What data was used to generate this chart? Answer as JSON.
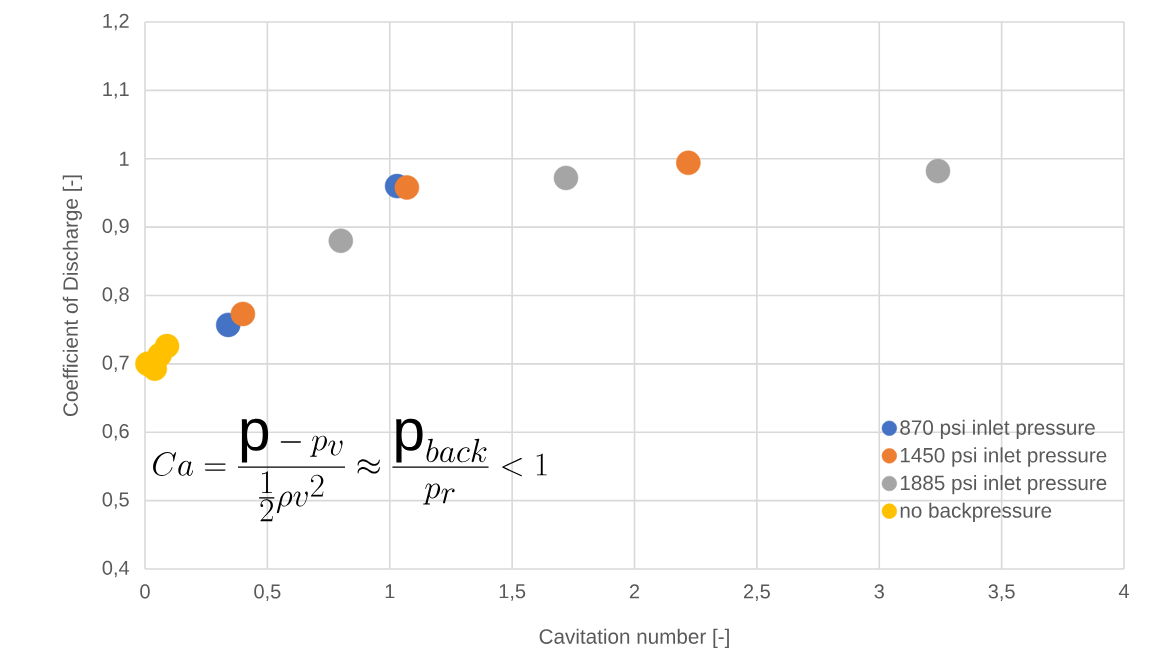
{
  "chart_data": {
    "type": "scatter",
    "xlabel": "Cavitation number [-]",
    "ylabel": "Coefficient of Discharge [-]",
    "xlim": [
      0,
      4
    ],
    "ylim": [
      0.4,
      1.2
    ],
    "xticks": [
      0,
      {
        "value": 0.5,
        "label": "0,5"
      },
      1,
      {
        "value": 1.5,
        "label": "1,5"
      },
      2,
      {
        "value": 2.5,
        "label": "2,5"
      },
      3,
      {
        "value": 3.5,
        "label": "3,5"
      },
      4
    ],
    "yticks": [
      {
        "value": 0.4,
        "label": "0,4"
      },
      {
        "value": 0.5,
        "label": "0,5"
      },
      {
        "value": 0.6,
        "label": "0,6"
      },
      {
        "value": 0.7,
        "label": "0,7"
      },
      {
        "value": 0.8,
        "label": "0,8"
      },
      {
        "value": 0.9,
        "label": "0,9"
      },
      1,
      {
        "value": 1.1,
        "label": "1,1"
      },
      {
        "value": 1.2,
        "label": "1,2"
      }
    ],
    "grid": true,
    "legend": "bottom right",
    "series": [
      {
        "name": "870 psi inlet pressure",
        "color": "#4472c4",
        "x": [
          0.34,
          1.03
        ],
        "values": [
          0.757,
          0.96
        ]
      },
      {
        "name": "1450 psi inlet pressure",
        "color": "#ed7d31",
        "x": [
          0.4,
          1.07,
          2.22
        ],
        "values": [
          0.773,
          0.958,
          0.994
        ]
      },
      {
        "name": "1885 psi inlet pressure",
        "color": "#a5a5a5",
        "x": [
          0.8,
          1.72,
          3.24
        ],
        "values": [
          0.88,
          0.972,
          0.982
        ]
      },
      {
        "name": "no backpressure",
        "color": "#ffc000",
        "x": [
          0.09,
          0.06,
          0.01,
          0.04
        ],
        "values": [
          0.726,
          0.713,
          0.7,
          0.693
        ]
      }
    ],
    "annotations": [
      "Ca = \\frac{\\mathrm{p} - p_v}{\\frac{1}{2}\\rho v^2} \\approx \\frac{\\mathrm{p}_{back}}{p_r} < 1"
    ]
  }
}
